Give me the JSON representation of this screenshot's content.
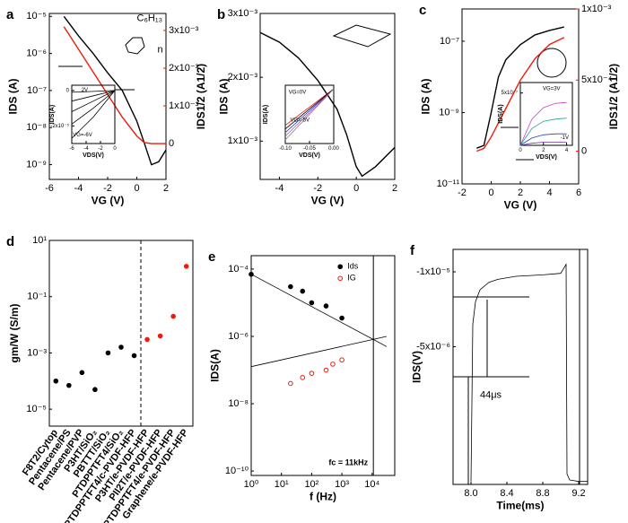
{
  "chart_data": [
    {
      "type": "line",
      "panel": "a",
      "xlabel": "VG (V)",
      "ylabel": "IDS (A)",
      "y2label": "IDS1/2 (A1/2)",
      "xlim": [
        -6,
        2
      ],
      "xticks": [
        -6,
        -4,
        -2,
        0,
        2
      ],
      "ylog": true,
      "ylim": [
        4e-10,
        1.2e-05
      ],
      "yticks": [
        {
          "value": 1e-05,
          "label": "10⁻⁵"
        },
        {
          "value": 1e-06,
          "label": "10⁻⁶"
        },
        {
          "value": 1e-07,
          "label": "10⁻⁷"
        },
        {
          "value": 1e-08,
          "label": "10⁻⁸"
        },
        {
          "value": 1e-09,
          "label": "10⁻⁹"
        }
      ],
      "y2lim": [
        -0.00095,
        0.00345
      ],
      "y2ticks": [
        0,
        {
          "value": 0.001,
          "label": "1x10⁻³"
        },
        {
          "value": 0.002,
          "label": "2x10⁻³"
        },
        {
          "value": 0.003,
          "label": "3x10⁻³"
        }
      ],
      "annotations": [
        "C₆H₁₃",
        "n"
      ],
      "series": [
        {
          "color": "#000000",
          "mode": "line",
          "x": [
            -5,
            -4,
            -3,
            -2,
            -1,
            0,
            0.5,
            1,
            1.5,
            2
          ],
          "values": [
            1e-05,
            3e-06,
            1e-06,
            3e-07,
            1e-07,
            1.5e-08,
            4e-09,
            1e-09,
            1.2e-09,
            2.5e-09
          ]
        },
        {
          "color": "#ee1c0c",
          "mode": "line",
          "axis": "y2",
          "x": [
            -5,
            -4,
            -3,
            -2,
            -1,
            0,
            0.5,
            1,
            1.5,
            2
          ],
          "values": [
            0.0031,
            0.0025,
            0.0019,
            0.0013,
            0.0007,
            0.0002,
            3e-05,
            0,
            0,
            0
          ]
        }
      ],
      "inset": {
        "xlabel": "VDS(V)",
        "ylabel": "IDS(A)",
        "xlim": [
          -6,
          0
        ],
        "xticks": [
          -6,
          -4,
          -2,
          0
        ],
        "ylim": [
          -3e-05,
          3e-06
        ],
        "yticks": [
          0,
          {
            "value": -2e-05,
            "label": "-2x10⁻⁵"
          }
        ],
        "annotations": [
          "2V",
          "VG=-6V"
        ],
        "series": [
          {
            "color": "#000000",
            "mode": "line",
            "x": [
              -6,
              -3,
              0
            ],
            "values": [
              -1e-06,
              -5e-07,
              0
            ]
          },
          {
            "color": "#000000",
            "mode": "line",
            "x": [
              -6,
              -3,
              0
            ],
            "values": [
              -6e-06,
              -3e-06,
              0
            ]
          },
          {
            "color": "#000000",
            "mode": "line",
            "x": [
              -6,
              -3,
              0
            ],
            "values": [
              -1.2e-05,
              -6e-06,
              0
            ]
          },
          {
            "color": "#000000",
            "mode": "line",
            "x": [
              -6,
              -3,
              0
            ],
            "values": [
              -1.9e-05,
              -1e-05,
              0
            ]
          },
          {
            "color": "#000000",
            "mode": "line",
            "x": [
              -6,
              -3,
              0
            ],
            "values": [
              -2.7e-05,
              -1.5e-05,
              0
            ]
          }
        ]
      }
    },
    {
      "type": "line",
      "panel": "b",
      "xlabel": "VG (V)",
      "ylabel": "IDS (A)",
      "xlim": [
        -5,
        2
      ],
      "xticks": [
        -4,
        -2,
        0,
        2
      ],
      "ylim": [
        0.0004,
        0.003
      ],
      "yticks": [
        {
          "value": 0.001,
          "label": "1x10⁻³"
        },
        {
          "value": 0.002,
          "label": "2x10⁻³"
        },
        {
          "value": 0.003,
          "label": "3x10⁻³"
        }
      ],
      "series": [
        {
          "color": "#000000",
          "mode": "line",
          "x": [
            -5,
            -4,
            -3,
            -2,
            -1,
            -0.5,
            0,
            0.3,
            1,
            2
          ],
          "values": [
            0.0027,
            0.00255,
            0.0023,
            0.00195,
            0.0015,
            0.0011,
            0.0006,
            0.00045,
            0.0006,
            0.0009
          ]
        }
      ],
      "inset": {
        "xlabel": "VDS(V)",
        "ylabel": "IDS(A)",
        "xlim": [
          -0.1,
          0
        ],
        "xticks": [
          {
            "value": -0.1,
            "label": "-0.10"
          },
          {
            "value": -0.05,
            "label": "-0.05"
          },
          {
            "value": 0,
            "label": "0.00"
          }
        ],
        "ylim": [
          -0.0003,
          2e-05
        ],
        "yticks": [],
        "annotations": [
          "VG=0V",
          "VG=-5V"
        ],
        "series": [
          {
            "color": "#ee1c0c",
            "mode": "line",
            "x": [
              -0.1,
              0
            ],
            "values": [
              -0.0002,
              0
            ]
          },
          {
            "color": "#1f3fd0",
            "mode": "line",
            "x": [
              -0.1,
              0
            ],
            "values": [
              -0.00024,
              0
            ]
          },
          {
            "color": "#000000",
            "mode": "line",
            "x": [
              -0.1,
              0
            ],
            "values": [
              -0.00022,
              0
            ]
          },
          {
            "color": "#d040d0",
            "mode": "line",
            "x": [
              -0.1,
              0
            ],
            "values": [
              -0.00026,
              0
            ]
          },
          {
            "color": "#808080",
            "mode": "line",
            "x": [
              -0.1,
              0
            ],
            "values": [
              -0.00028,
              0
            ]
          }
        ]
      }
    },
    {
      "type": "line",
      "panel": "c",
      "xlabel": "VG (V)",
      "ylabel": "IDS (A)",
      "y2label": "IDS1/2 (A1/2)",
      "xlim": [
        -2,
        6
      ],
      "xticks": [
        -2,
        0,
        2,
        4,
        6
      ],
      "ylog": true,
      "ylim": [
        1e-11,
        8e-07
      ],
      "yticks": [
        {
          "value": 1e-07,
          "label": "10⁻⁷"
        },
        {
          "value": 1e-09,
          "label": "10⁻⁹"
        },
        {
          "value": 1e-11,
          "label": "10⁻¹¹"
        }
      ],
      "y2lim": [
        -0.00023,
        0.001
      ],
      "y2ticks": [
        0,
        {
          "value": 0.0005,
          "label": "5x10⁻⁴"
        },
        {
          "value": 0.001,
          "label": "1x10⁻³"
        }
      ],
      "series": [
        {
          "color": "#000000",
          "mode": "line",
          "x": [
            -1,
            -0.5,
            0,
            0.5,
            1,
            2,
            3,
            4,
            5
          ],
          "values": [
            1e-10,
            1.2e-10,
            1e-09,
            1e-08,
            3e-08,
            8e-08,
            1.5e-07,
            2e-07,
            2.5e-07
          ]
        },
        {
          "color": "#ee1c0c",
          "mode": "line",
          "axis": "y2",
          "x": [
            -1,
            -0.5,
            0,
            1,
            2,
            3,
            4,
            5
          ],
          "values": [
            0,
            2e-05,
            0.0001,
            0.0003,
            0.0005,
            0.00065,
            0.00075,
            0.0008
          ]
        }
      ],
      "inset": {
        "xlabel": "VDS(V)",
        "ylabel": "IDS(A)",
        "xlim": [
          0,
          4.5
        ],
        "xticks": [
          0,
          2,
          4
        ],
        "ylim": [
          0,
          6e-07
        ],
        "yticks": [
          {
            "value": 5e-07,
            "label": "5x10⁻⁷"
          }
        ],
        "annotations": [
          "VG=3V",
          "-1V"
        ],
        "series": [
          {
            "color": "#d040d0",
            "mode": "line",
            "x": [
              0,
              1,
              2,
              3,
              4
            ],
            "values": [
              0,
              2.5e-07,
              3.6e-07,
              4e-07,
              4.1e-07
            ]
          },
          {
            "color": "#20a090",
            "mode": "line",
            "x": [
              0,
              1,
              2,
              3,
              4
            ],
            "values": [
              0,
              1.6e-07,
              2.3e-07,
              2.5e-07,
              2.6e-07
            ]
          },
          {
            "color": "#1f3fd0",
            "mode": "line",
            "x": [
              0,
              1,
              2,
              3,
              4
            ],
            "values": [
              0,
              7e-08,
              1e-07,
              1.1e-07,
              1.1e-07
            ]
          },
          {
            "color": "#7030a0",
            "mode": "line",
            "x": [
              0,
              1,
              2,
              3,
              4
            ],
            "values": [
              0,
              2e-08,
              3e-08,
              3e-08,
              3e-08
            ]
          }
        ]
      }
    },
    {
      "type": "scatter",
      "panel": "d",
      "ylabel": "gm/W (S/m)",
      "categories": [
        "F8T2/Cytop",
        "Pentacene/PS",
        "Pentacene/PVP",
        "P3HT/SiO₂",
        "PBTTT/SiO₂",
        "PTDPPTFT4/SiO₂",
        "PTDPPTFT4/c-PVDF-HFP",
        "P3HT/e-PVDF-HFP",
        "PII2T/e-PVDF-HFP",
        "PTDPPTFT4/e-PVDF-HFP",
        "Graphene/e-PVDF-HFP"
      ],
      "ylog": true,
      "ylim": [
        2.5e-06,
        10
      ],
      "yticks": [
        {
          "value": 1e-05,
          "label": "10⁻⁵"
        },
        {
          "value": 0.001,
          "label": "10⁻³"
        },
        {
          "value": 0.1,
          "label": "10⁻¹"
        },
        {
          "value": 10,
          "label": "10¹"
        }
      ],
      "series": [
        {
          "color": "#000000",
          "mode": "points",
          "marker": "filled",
          "values": [
            0.0001,
            7e-05,
            0.0002,
            5e-05,
            0.001,
            0.0016,
            0.0008,
            null,
            null,
            null,
            null
          ]
        },
        {
          "color": "#ee1c0c",
          "mode": "points",
          "marker": "filled",
          "values": [
            null,
            null,
            null,
            null,
            null,
            null,
            null,
            0.003,
            0.004,
            0.02,
            1.2
          ]
        }
      ]
    },
    {
      "type": "scatter",
      "panel": "e",
      "xlabel": "f (Hz)",
      "ylabel": "IDS(A)",
      "xlog": true,
      "xlim": [
        1,
        56000
      ],
      "xticks": [
        {
          "value": 1,
          "label": "10⁰"
        },
        {
          "value": 10,
          "label": "10¹"
        },
        {
          "value": 100,
          "label": "10²"
        },
        {
          "value": 1000,
          "label": "10³"
        },
        {
          "value": 10000,
          "label": "10⁴"
        }
      ],
      "ylog": true,
      "ylim": [
        7.4e-11,
        0.00025
      ],
      "yticks": [
        {
          "value": 1e-10,
          "label": "10⁻¹⁰"
        },
        {
          "value": 1e-08,
          "label": "10⁻⁸"
        },
        {
          "value": 1e-06,
          "label": "10⁻⁶"
        },
        {
          "value": 0.0001,
          "label": "10⁻⁴"
        }
      ],
      "vline": {
        "value": 11000,
        "label": "fc = 11kHz"
      },
      "series": [
        {
          "name": "Ids",
          "color": "#000000",
          "mode": "points",
          "marker": "filled",
          "x": [
            1,
            20,
            50,
            100,
            300,
            1000
          ],
          "values": [
            7e-05,
            3e-05,
            2.2e-05,
            1e-05,
            8e-06,
            3.5e-06
          ]
        },
        {
          "name": "IG",
          "color": "#ee1c0c",
          "mode": "points",
          "marker": "hollow",
          "x": [
            20,
            50,
            100,
            300,
            500,
            1000
          ],
          "values": [
            4e-08,
            6e-08,
            8e-08,
            1e-07,
            1.5e-07,
            2e-07
          ]
        },
        {
          "color": "#000000",
          "mode": "line",
          "x": [
            1,
            30000
          ],
          "values": [
            7e-05,
            5e-07
          ]
        },
        {
          "color": "#000000",
          "mode": "line",
          "x": [
            1,
            30000
          ],
          "values": [
            1.26e-07,
            1e-06
          ]
        }
      ]
    },
    {
      "type": "line",
      "panel": "f",
      "xlabel": "Time(ms)",
      "ylabel": "IDS(V)",
      "xlim": [
        7.8,
        9.3
      ],
      "xticks": [
        {
          "value": 8,
          "label": "8.0"
        },
        {
          "value": 8.4,
          "label": "8.4"
        },
        {
          "value": 8.8,
          "label": "8.8"
        },
        {
          "value": 9.2,
          "label": "9.2"
        }
      ],
      "ylim": [
        4.2e-06,
        -1.15e-05
      ],
      "yticks": [
        {
          "value": -1e-05,
          "label": "-1x10⁻⁵"
        },
        {
          "value": -5e-06,
          "label": "-5x10⁻⁶"
        }
      ],
      "annotations": [
        "44μs"
      ],
      "series": [
        {
          "color": "#000000",
          "mode": "line",
          "x": [
            8.0,
            8.02,
            8.05,
            8.1,
            8.2,
            8.3,
            8.5,
            8.8,
            9.0,
            9.06,
            9.07,
            9.1,
            9.2,
            9.3
          ],
          "values": [
            4e-06,
            -6.5e-06,
            -8e-06,
            -8.8e-06,
            -9.3e-06,
            -9.5e-06,
            -9.7e-06,
            -9.8e-06,
            -9.9e-06,
            -1.05e-05,
            3.5e-06,
            3.9e-06,
            4e-06,
            4e-06
          ]
        }
      ]
    }
  ]
}
